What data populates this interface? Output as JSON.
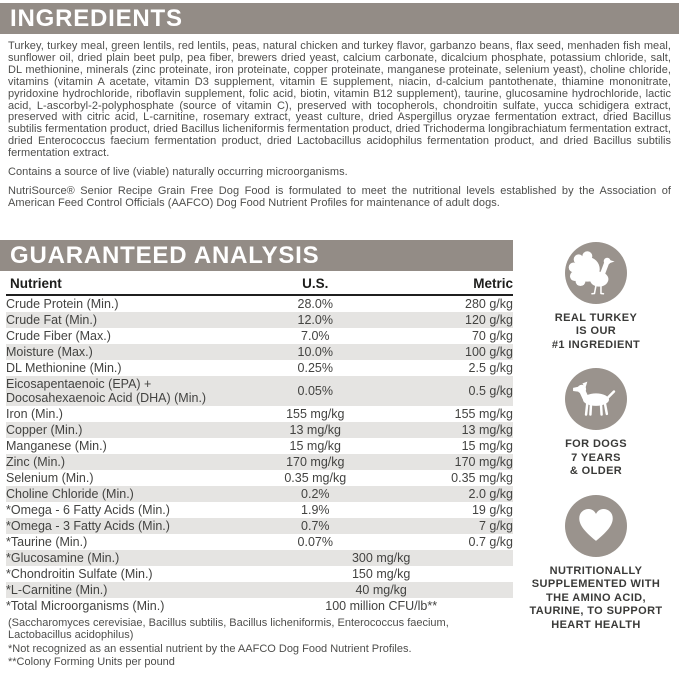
{
  "colors": {
    "bar": "#938c86",
    "badge_circle": "#9a938d",
    "stripe": "#e5e4e2",
    "body_text": "#4e4e4c",
    "table_text": "#434341",
    "caption_text": "#3a3a38",
    "header_text": "#ffffff"
  },
  "ingredients": {
    "title": "INGREDIENTS",
    "body": "Turkey, turkey meal, green lentils, red lentils, peas, natural chicken and turkey flavor, garbanzo beans, flax seed, menhaden fish meal, sunflower oil, dried plain beet pulp, pea fiber, brewers dried yeast, calcium carbonate, dicalcium phosphate, potassium chloride, salt, DL methionine, minerals (zinc proteinate, iron proteinate, copper proteinate, manganese proteinate, selenium yeast), choline chloride, vitamins (vitamin A acetate, vitamin D3 supplement, vitamin E supplement, niacin, d-calcium pantothenate, thiamine mononitrate, pyridoxine hydrochloride, riboflavin supplement, folic acid, biotin, vitamin B12 supplement), taurine, glucosamine hydrochloride, lactic acid, L-ascorbyl-2-polyphosphate (source of vitamin C), preserved with tocopherols, chondroitin sulfate, yucca schidigera extract, preserved with citric acid, L-carnitine, rosemary extract, yeast culture, dried Aspergillus oryzae fermentation extract, dried Bacillus subtilis fermentation product, dried Bacillus licheniformis fermentation product, dried Trichoderma longibrachiatum fermentation extract, dried Enterococcus faecium fermentation product, dried Lactobacillus acidophilus fermentation product, and dried Bacillus subtilis fermentation extract.",
    "contains_note": "Contains a source of live (viable) naturally occurring microorganisms.",
    "aafco_statement": "NutriSource® Senior Recipe Grain Free Dog Food is formulated to meet the nutritional levels established by the Association of American Feed Control Officials (AAFCO) Dog Food Nutrient Profiles for maintenance of adult dogs."
  },
  "analysis": {
    "title": "GUARANTEED ANALYSIS",
    "columns": [
      "Nutrient",
      "U.S.",
      "Metric"
    ],
    "rows": [
      {
        "nutrient": "Crude Protein (Min.)",
        "us": "28.0%",
        "metric": "280 g/kg"
      },
      {
        "nutrient": "Crude Fat (Min.)",
        "us": "12.0%",
        "metric": "120 g/kg"
      },
      {
        "nutrient": "Crude Fiber (Max.)",
        "us": "7.0%",
        "metric": "70 g/kg"
      },
      {
        "nutrient": "Moisture (Max.)",
        "us": "10.0%",
        "metric": "100 g/kg"
      },
      {
        "nutrient": "DL Methionine (Min.)",
        "us": "0.25%",
        "metric": "2.5 g/kg"
      },
      {
        "nutrient": "Eicosapentaenoic (EPA) +\nDocosahexaenoic Acid (DHA) (Min.)",
        "us": "0.05%",
        "metric": "0.5 g/kg"
      },
      {
        "nutrient": "Iron (Min.)",
        "us": "155 mg/kg",
        "metric": "155 mg/kg"
      },
      {
        "nutrient": "Copper (Min.)",
        "us": "13 mg/kg",
        "metric": "13 mg/kg"
      },
      {
        "nutrient": "Manganese (Min.)",
        "us": "15 mg/kg",
        "metric": "15 mg/kg"
      },
      {
        "nutrient": "Zinc (Min.)",
        "us": "170 mg/kg",
        "metric": "170 mg/kg"
      },
      {
        "nutrient": "Selenium (Min.)",
        "us": "0.35 mg/kg",
        "metric": "0.35 mg/kg"
      },
      {
        "nutrient": "Choline Chloride (Min.)",
        "us": "0.2%",
        "metric": "2.0 g/kg"
      },
      {
        "nutrient": "*Omega - 6 Fatty Acids (Min.)",
        "us": "1.9%",
        "metric": "19 g/kg"
      },
      {
        "nutrient": "*Omega - 3 Fatty Acids (Min.)",
        "us": "0.7%",
        "metric": "7 g/kg"
      },
      {
        "nutrient": "*Taurine (Min.)",
        "us": "0.07%",
        "metric": "0.7 g/kg"
      },
      {
        "nutrient": "*Glucosamine (Min.)",
        "combined": "300 mg/kg"
      },
      {
        "nutrient": "*Chondroitin Sulfate (Min.)",
        "combined": "150 mg/kg"
      },
      {
        "nutrient": "*L-Carnitine (Min.)",
        "combined": "40 mg/kg"
      },
      {
        "nutrient": "*Total Microorganisms (Min.)",
        "combined": "100 million CFU/lb**"
      }
    ],
    "footnotes": [
      "(Saccharomyces cerevisiae, Bacillus subtilis, Bacillus licheniformis, Enterococcus faecium, Lactobacillus acidophilus)",
      "*Not recognized as an essential nutrient by the AAFCO Dog Food Nutrient Profiles.",
      "**Colony Forming Units per pound"
    ]
  },
  "badges": [
    {
      "icon": "turkey-icon",
      "caption": "REAL TURKEY\nIS OUR\n#1 INGREDIENT"
    },
    {
      "icon": "dog-icon",
      "caption": "FOR DOGS\n7 YEARS\n& OLDER"
    },
    {
      "icon": "heart-icon",
      "caption": "NUTRITIONALLY\nSUPPLEMENTED WITH\nTHE AMINO ACID,\nTAURINE, TO SUPPORT\nHEART HEALTH"
    }
  ]
}
